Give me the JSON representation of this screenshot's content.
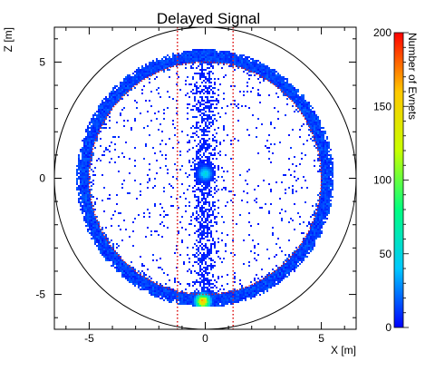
{
  "chart_data": {
    "type": "heatmap",
    "title": "Delayed Signal",
    "xlabel": "X [m]",
    "ylabel": "Z [m]",
    "colorbar_label": "Number of Evnets",
    "xlim": [
      -6.5,
      6.5
    ],
    "ylim": [
      -6.5,
      6.5
    ],
    "xticks": [
      -5,
      0,
      5
    ],
    "yticks": [
      -5,
      0,
      5
    ],
    "colorbar_range": [
      0,
      200
    ],
    "colorbar_ticks": [
      0,
      50,
      100,
      150,
      200
    ],
    "grid": false,
    "aspect": "equal",
    "outer_circle_radius_m": 6.5,
    "fiducial_circle_radius_m": 5.0,
    "detector_radius_m": 5.5,
    "vertical_cut_lines_x_m": [
      -1.2,
      1.2
    ],
    "hotspots": [
      {
        "label": "center",
        "x": 0.0,
        "z": 0.2,
        "level": 55
      },
      {
        "label": "bottom",
        "x": -0.1,
        "z": -5.3,
        "level": 180
      }
    ],
    "colormap": [
      "#0000ff",
      "#00c8ff",
      "#00ff80",
      "#c8ff00",
      "#ffc800",
      "#ff0000"
    ]
  }
}
